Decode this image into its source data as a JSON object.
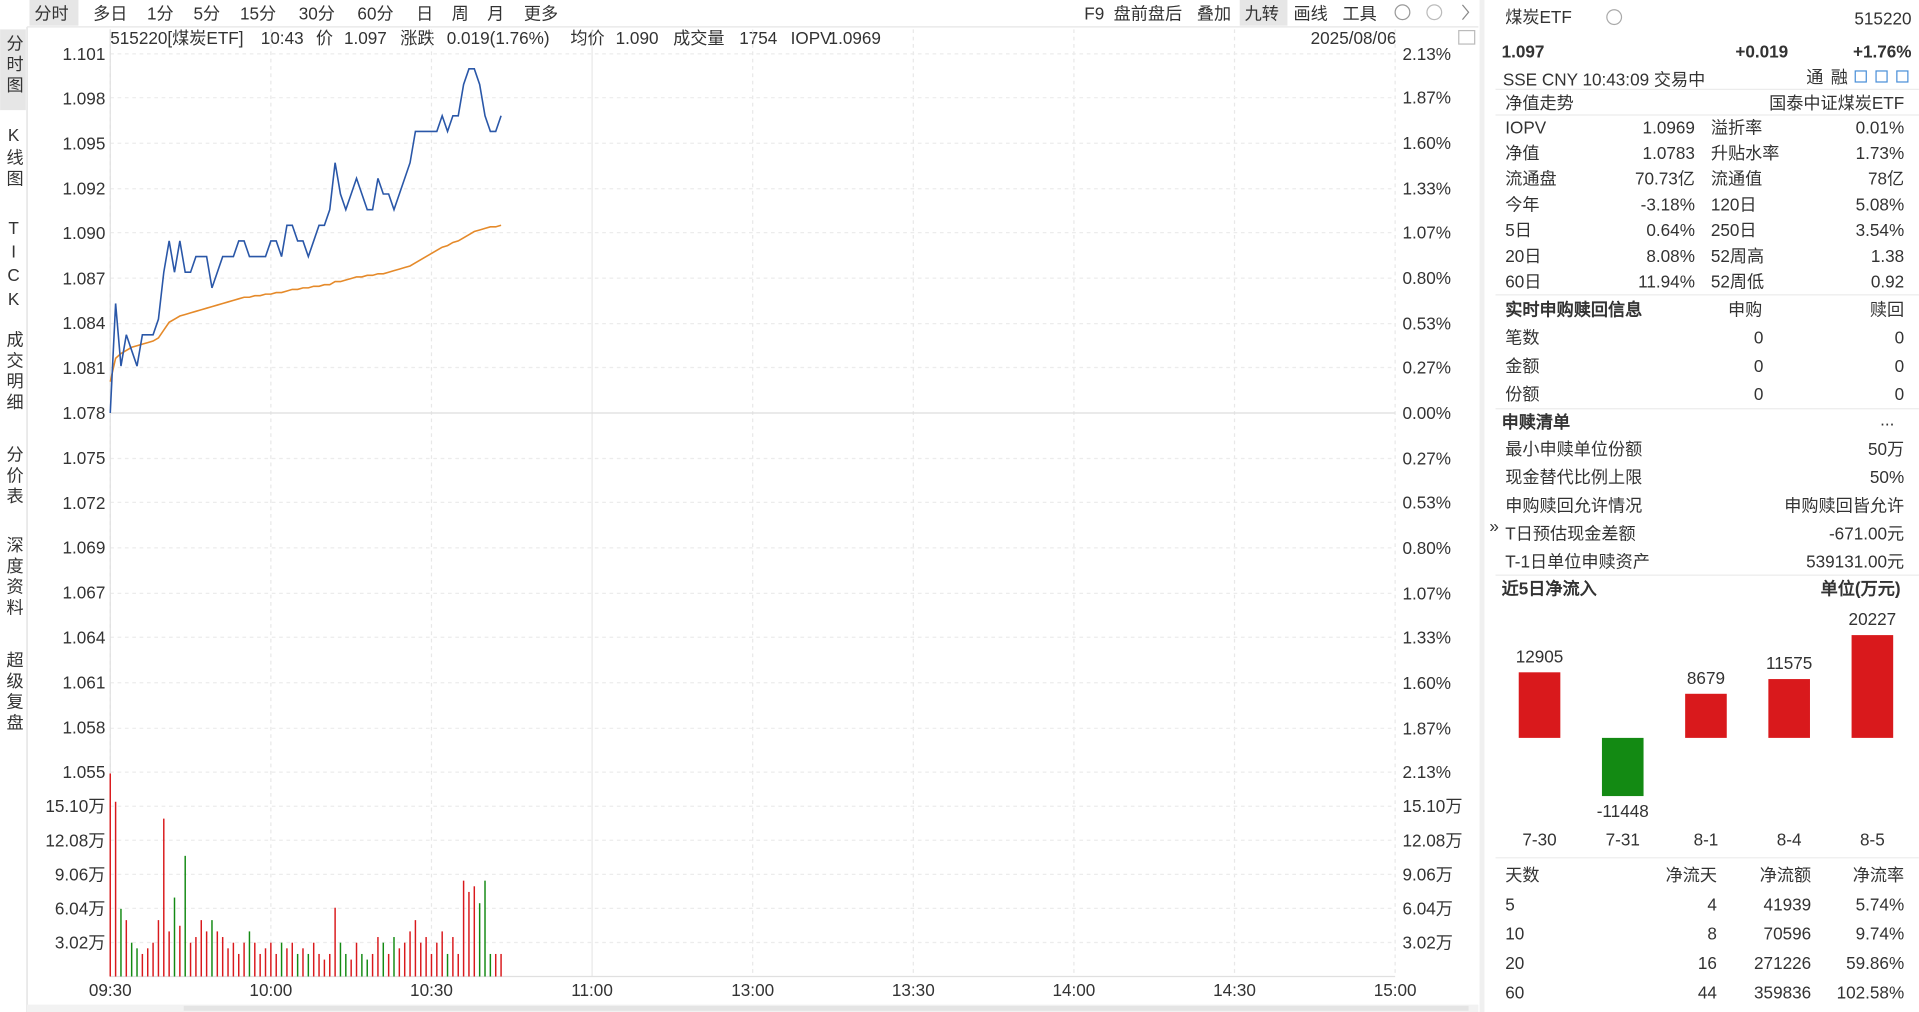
{
  "toolbar": {
    "tabs": [
      "分时",
      "多日",
      "1分",
      "5分",
      "15分",
      "30分",
      "60分",
      "日",
      "周",
      "月",
      "更多"
    ],
    "tools": [
      "F9",
      "盘前盘后",
      "叠加",
      "九转",
      "画线",
      "工具"
    ]
  },
  "sidebar": [
    "分时图",
    "K线图",
    "TICK",
    "成交明细",
    "分价表",
    "深度资料",
    "超级复盘"
  ],
  "quote_line": {
    "symbol": "515220[煤炭ETF]",
    "time": "10:43",
    "price_label": "价",
    "price": "1.097",
    "change_label": "涨跌",
    "change": "0.019(1.76%)",
    "avg_label": "均价",
    "avg": "1.090",
    "volume_label": "成交量",
    "volume": "1754",
    "iopv_label": "IOPV",
    "iopv": "1.0969",
    "date": "2025/08/06"
  },
  "intraday": {
    "type": "line",
    "grid": true,
    "price_color": "#2a57a8",
    "average_color": "#e58a2a",
    "up_color": "#d9191c",
    "down_color": "#138a13",
    "x": [
      0,
      1,
      2,
      3,
      4,
      5,
      6,
      7,
      8,
      9,
      10,
      11,
      12,
      13,
      14,
      15,
      16,
      17,
      18,
      19,
      20,
      21,
      22,
      23,
      24,
      25,
      26,
      27,
      28,
      29,
      30,
      31,
      32,
      33,
      34,
      35,
      36,
      37,
      38,
      39,
      40,
      41,
      42,
      43,
      44,
      45,
      46,
      47,
      48,
      49,
      50,
      51,
      52,
      53,
      54,
      55,
      56,
      57,
      58,
      59,
      60,
      61,
      62,
      63,
      64,
      65,
      66,
      67,
      68,
      69,
      70,
      71,
      72,
      73
    ],
    "xlim": [
      0,
      240
    ],
    "xticks": [
      {
        "value": 0,
        "label": "09:30"
      },
      {
        "value": 30,
        "label": "10:00"
      },
      {
        "value": 60,
        "label": "10:30"
      },
      {
        "value": 90,
        "label": "11:00"
      },
      {
        "value": 120,
        "label": "13:00"
      },
      {
        "value": 150,
        "label": "13:30"
      },
      {
        "value": 180,
        "label": "14:00"
      },
      {
        "value": 210,
        "label": "14:30"
      },
      {
        "value": 240,
        "label": "15:00"
      }
    ],
    "price": [
      1.078,
      1.085,
      1.081,
      1.083,
      1.082,
      1.081,
      1.083,
      1.083,
      1.083,
      1.084,
      1.087,
      1.089,
      1.087,
      1.089,
      1.087,
      1.087,
      1.088,
      1.088,
      1.088,
      1.086,
      1.087,
      1.088,
      1.088,
      1.088,
      1.089,
      1.089,
      1.088,
      1.088,
      1.088,
      1.088,
      1.089,
      1.089,
      1.088,
      1.09,
      1.09,
      1.089,
      1.089,
      1.088,
      1.089,
      1.09,
      1.09,
      1.091,
      1.094,
      1.092,
      1.091,
      1.092,
      1.093,
      1.092,
      1.091,
      1.091,
      1.093,
      1.092,
      1.092,
      1.091,
      1.092,
      1.093,
      1.094,
      1.096,
      1.096,
      1.096,
      1.096,
      1.096,
      1.097,
      1.096,
      1.097,
      1.097,
      1.099,
      1.1,
      1.1,
      1.099,
      1.097,
      1.096,
      1.096,
      1.097
    ],
    "average": [
      1.08,
      1.0815,
      1.0818,
      1.082,
      1.0822,
      1.0823,
      1.0824,
      1.0825,
      1.0826,
      1.0828,
      1.0833,
      1.0838,
      1.084,
      1.0842,
      1.0843,
      1.0844,
      1.0845,
      1.0846,
      1.0847,
      1.0848,
      1.0849,
      1.085,
      1.0851,
      1.0852,
      1.0853,
      1.0854,
      1.0854,
      1.0855,
      1.0855,
      1.0856,
      1.0856,
      1.0857,
      1.0857,
      1.0858,
      1.0859,
      1.0859,
      1.086,
      1.086,
      1.0861,
      1.0861,
      1.0862,
      1.0862,
      1.0864,
      1.0864,
      1.0865,
      1.0866,
      1.0867,
      1.0867,
      1.0868,
      1.0868,
      1.0869,
      1.0869,
      1.087,
      1.0871,
      1.0872,
      1.0873,
      1.0874,
      1.0876,
      1.0878,
      1.088,
      1.0882,
      1.0884,
      1.0886,
      1.0887,
      1.0889,
      1.089,
      1.0892,
      1.0894,
      1.0896,
      1.0897,
      1.0898,
      1.0899,
      1.0899,
      1.09
    ],
    "ylim": [
      1.05504,
      1.10096
    ],
    "yticks": [
      {
        "value": 1.10096,
        "label": "1.101"
      },
      {
        "value": 1.09809,
        "label": "1.098"
      },
      {
        "value": 1.09522,
        "label": "1.095"
      },
      {
        "value": 1.09235,
        "label": "1.092"
      },
      {
        "value": 1.0895,
        "label": "1.090"
      },
      {
        "value": 1.08661,
        "label": "1.087"
      },
      {
        "value": 1.08374,
        "label": "1.084"
      },
      {
        "value": 1.08087,
        "label": "1.081"
      },
      {
        "value": 1.078,
        "label": "1.078"
      },
      {
        "value": 1.07513,
        "label": "1.075"
      },
      {
        "value": 1.07226,
        "label": "1.072"
      },
      {
        "value": 1.06939,
        "label": "1.069"
      },
      {
        "value": 1.06652,
        "label": "1.067"
      },
      {
        "value": 1.06365,
        "label": "1.064"
      },
      {
        "value": 1.06078,
        "label": "1.061"
      },
      {
        "value": 1.05791,
        "label": "1.058"
      },
      {
        "value": 1.05504,
        "label": "1.055"
      }
    ],
    "y2lim": [
      -2.13,
      2.13
    ],
    "y2ticks": [
      {
        "value": 2.13,
        "label": "2.13%"
      },
      {
        "value": 1.87,
        "label": "1.87%"
      },
      {
        "value": 1.6,
        "label": "1.60%"
      },
      {
        "value": 1.33,
        "label": "1.33%"
      },
      {
        "value": 1.07,
        "label": "1.07%"
      },
      {
        "value": 0.8,
        "label": "0.80%"
      },
      {
        "value": 0.53,
        "label": "0.53%"
      },
      {
        "value": 0.27,
        "label": "0.27%"
      },
      {
        "value": 0,
        "label": "0.00%"
      },
      {
        "value": -0.27,
        "label": "0.27%"
      },
      {
        "value": -0.53,
        "label": "0.53%"
      },
      {
        "value": -0.8,
        "label": "0.80%"
      },
      {
        "value": -1.07,
        "label": "1.07%"
      },
      {
        "value": -1.33,
        "label": "1.33%"
      },
      {
        "value": -1.6,
        "label": "1.60%"
      },
      {
        "value": -1.87,
        "label": "1.87%"
      },
      {
        "value": -2.13,
        "label": "2.13%"
      }
    ],
    "volume": [
      18.0,
      15.5,
      6,
      5,
      3,
      2.5,
      2,
      2.5,
      3,
      5,
      14,
      4,
      7,
      4.5,
      10.7,
      3,
      3.5,
      5,
      4,
      5,
      4,
      3.5,
      2.5,
      3,
      2,
      3,
      4,
      3,
      2,
      2.5,
      3,
      2,
      3,
      2.5,
      3,
      2,
      2.5,
      2,
      3,
      2,
      1.5,
      2,
      6.1,
      3,
      2,
      1.5,
      3,
      2,
      1.5,
      2,
      3.5,
      3,
      2,
      3.5,
      2.5,
      3,
      4,
      5,
      3,
      3.5,
      2,
      3,
      4,
      2,
      3.5,
      2,
      8.5,
      7.5,
      8,
      6.5,
      8.5,
      2,
      2,
      2
    ],
    "volume_ylim": [
      0,
      18.12
    ],
    "volume_ticks": [
      {
        "value": 15.1,
        "label": "15.10万"
      },
      {
        "value": 12.08,
        "label": "12.08万"
      },
      {
        "value": 9.06,
        "label": "9.06万"
      },
      {
        "value": 6.04,
        "label": "6.04万"
      },
      {
        "value": 3.02,
        "label": "3.02万"
      }
    ]
  },
  "etf_panel": {
    "name": "煤炭ETF",
    "code": "515220",
    "price": "1.097",
    "change": "+0.019",
    "change_pct": "+1.76%",
    "status": "SSE  CNY  10:43:09  交易中",
    "badges": [
      "通",
      "融"
    ],
    "collapse": "»",
    "nav_title": "净值走势",
    "fund_name": "国泰中证煤炭ETF",
    "stats": [
      [
        "IOPV",
        "1.0969",
        "溢折率",
        "0.01%"
      ],
      [
        "净值",
        "1.0783",
        "升贴水率",
        "1.73%"
      ],
      [
        "流通盘",
        "70.73亿",
        "流通值",
        "78亿"
      ],
      [
        "今年",
        "-3.18%",
        "120日",
        "5.08%"
      ],
      [
        "5日",
        "0.64%",
        "250日",
        "3.54%"
      ],
      [
        "20日",
        "8.08%",
        "52周高",
        "1.38"
      ],
      [
        "60日",
        "11.94%",
        "52周低",
        "0.92"
      ]
    ],
    "subscription": {
      "title": "实时申购赎回信息",
      "columns": [
        "申购",
        "赎回"
      ],
      "rows": [
        [
          "笔数",
          "0",
          "0"
        ],
        [
          "金额",
          "0",
          "0"
        ],
        [
          "份额",
          "0",
          "0"
        ]
      ]
    },
    "basket": {
      "title": "申赎清单",
      "more": "...",
      "rows": [
        [
          "最小申赎单位份额",
          "50万"
        ],
        [
          "现金替代比例上限",
          "50%"
        ],
        [
          "申购赎回允许情况",
          "申购赎回皆允许"
        ],
        [
          "T日预估现金差额",
          "-671.00元"
        ],
        [
          "T-1日单位申赎资产",
          "539131.00元"
        ]
      ]
    },
    "net_inflow": {
      "title": "近5日净流入",
      "unit": "单位(万元)",
      "chart": {
        "type": "bar",
        "categories": [
          "7-30",
          "7-31",
          "8-1",
          "8-4",
          "8-5"
        ],
        "values": [
          12905,
          -11448,
          8679,
          11575,
          20227
        ],
        "up_color": "#d9191c",
        "down_color": "#138a13"
      }
    },
    "inflow_table": {
      "header": [
        "天数",
        "净流天",
        "净流额",
        "净流率"
      ],
      "rows": [
        [
          "5",
          "4",
          "41939",
          "5.74%"
        ],
        [
          "10",
          "8",
          "70596",
          "9.74%"
        ],
        [
          "20",
          "16",
          "271226",
          "59.86%"
        ],
        [
          "60",
          "44",
          "359836",
          "102.58%"
        ]
      ]
    }
  }
}
